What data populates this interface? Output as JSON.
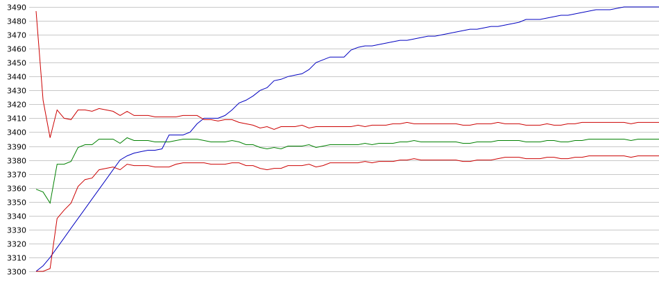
{
  "chart_data": {
    "type": "line",
    "title": "",
    "xlabel": "",
    "ylabel": "",
    "ylim": [
      3300,
      3490
    ],
    "y_ticks": [
      "3300",
      "3310",
      "3320",
      "3330",
      "3340",
      "3350",
      "3360",
      "3370",
      "3380",
      "3390",
      "3400",
      "3410",
      "3420",
      "3430",
      "3440",
      "3450",
      "3460",
      "3470",
      "3480",
      "3490"
    ],
    "grid": true,
    "legend": "none",
    "x_points": 90,
    "series": [
      {
        "color": "#0000c0",
        "values": [
          3300,
          3304,
          3310,
          3317,
          3324,
          3331,
          3338,
          3345,
          3352,
          3359,
          3366,
          3373,
          3380,
          3383,
          3385,
          3386,
          3387,
          3387,
          3388,
          3398,
          3398,
          3398,
          3400,
          3406,
          3410,
          3410,
          3410,
          3412,
          3416,
          3421,
          3423,
          3426,
          3430,
          3432,
          3437,
          3438,
          3440,
          3441,
          3442,
          3445,
          3450,
          3452,
          3454,
          3454,
          3454,
          3459,
          3461,
          3462,
          3462,
          3463,
          3464,
          3465,
          3466,
          3466,
          3467,
          3468,
          3469,
          3469,
          3470,
          3471,
          3472,
          3473,
          3474,
          3474,
          3475,
          3476,
          3476,
          3477,
          3478,
          3479,
          3481,
          3481,
          3481,
          3482,
          3483,
          3484,
          3484,
          3485,
          3486,
          3487,
          3488,
          3488,
          3488,
          3489,
          3490,
          3490,
          3490,
          3490,
          3490,
          3490
        ]
      },
      {
        "color": "#cc0000",
        "values": [
          3487,
          3423,
          3396,
          3416,
          3410,
          3409,
          3416,
          3416,
          3415,
          3417,
          3416,
          3415,
          3412,
          3415,
          3412,
          3412,
          3412,
          3411,
          3411,
          3411,
          3411,
          3412,
          3412,
          3412,
          3409,
          3409,
          3408,
          3409,
          3409,
          3407,
          3406,
          3405,
          3403,
          3404,
          3402,
          3404,
          3404,
          3404,
          3405,
          3403,
          3404,
          3404,
          3404,
          3404,
          3404,
          3404,
          3405,
          3404,
          3405,
          3405,
          3405,
          3406,
          3406,
          3407,
          3406,
          3406,
          3406,
          3406,
          3406,
          3406,
          3406,
          3405,
          3405,
          3406,
          3406,
          3406,
          3407,
          3406,
          3406,
          3406,
          3405,
          3405,
          3405,
          3406,
          3405,
          3405,
          3406,
          3406,
          3407,
          3407,
          3407,
          3407,
          3407,
          3407,
          3407,
          3406,
          3407,
          3407,
          3407,
          3407
        ]
      },
      {
        "color": "#cc0000",
        "values": [
          3300,
          3300,
          3302,
          3338,
          3344,
          3349,
          3361,
          3366,
          3367,
          3373,
          3374,
          3375,
          3373,
          3377,
          3376,
          3376,
          3376,
          3375,
          3375,
          3375,
          3377,
          3378,
          3378,
          3378,
          3378,
          3377,
          3377,
          3377,
          3378,
          3378,
          3376,
          3376,
          3374,
          3373,
          3374,
          3374,
          3376,
          3376,
          3376,
          3377,
          3375,
          3376,
          3378,
          3378,
          3378,
          3378,
          3378,
          3379,
          3378,
          3379,
          3379,
          3379,
          3380,
          3380,
          3381,
          3380,
          3380,
          3380,
          3380,
          3380,
          3380,
          3379,
          3379,
          3380,
          3380,
          3380,
          3381,
          3382,
          3382,
          3382,
          3381,
          3381,
          3381,
          3382,
          3382,
          3381,
          3381,
          3382,
          3382,
          3383,
          3383,
          3383,
          3383,
          3383,
          3383,
          3382,
          3383,
          3383,
          3383,
          3383
        ]
      },
      {
        "color": "#008000",
        "values": [
          3359,
          3357,
          3349,
          3377,
          3377,
          3379,
          3389,
          3391,
          3391,
          3395,
          3395,
          3395,
          3392,
          3396,
          3394,
          3394,
          3394,
          3393,
          3393,
          3393,
          3394,
          3395,
          3395,
          3395,
          3394,
          3393,
          3393,
          3393,
          3394,
          3393,
          3391,
          3391,
          3389,
          3388,
          3389,
          3388,
          3390,
          3390,
          3390,
          3391,
          3389,
          3390,
          3391,
          3391,
          3391,
          3391,
          3391,
          3392,
          3391,
          3392,
          3392,
          3392,
          3393,
          3393,
          3394,
          3393,
          3393,
          3393,
          3393,
          3393,
          3393,
          3392,
          3392,
          3393,
          3393,
          3393,
          3394,
          3394,
          3394,
          3394,
          3393,
          3393,
          3393,
          3394,
          3394,
          3393,
          3393,
          3394,
          3394,
          3395,
          3395,
          3395,
          3395,
          3395,
          3395,
          3394,
          3395,
          3395,
          3395,
          3395
        ]
      }
    ]
  }
}
